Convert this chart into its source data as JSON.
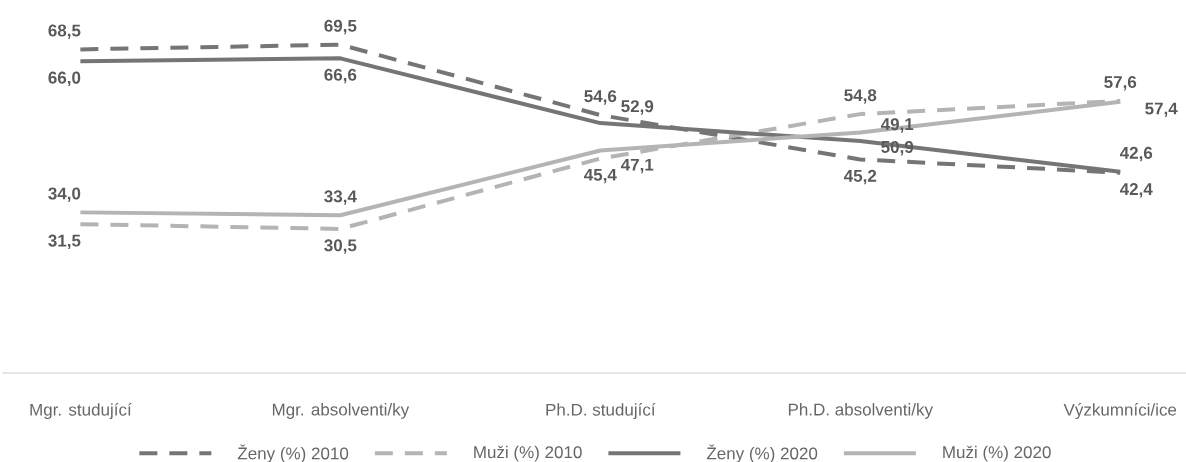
{
  "chart_data": {
    "type": "line",
    "categories": [
      "Mgr. studující",
      "Mgr. absolventi/ky",
      "Ph.D. studující",
      "Ph.D. absolventi/ky",
      "Výzkumníci/ice"
    ],
    "series": [
      {
        "name": "Ženy (%) 2010",
        "color": "#757575",
        "line_style": "dashed",
        "values": [
          68.5,
          69.5,
          54.6,
          45.2,
          42.4
        ],
        "value_labels": [
          "68,5",
          "69,5",
          "54,6",
          "45,2",
          "42,4"
        ]
      },
      {
        "name": "Muži (%) 2010",
        "color": "#b4b4b4",
        "line_style": "dashed",
        "values": [
          31.5,
          30.5,
          45.4,
          54.8,
          57.6
        ],
        "value_labels": [
          "31,5",
          "30,5",
          "45,4",
          "54,8",
          "57,6"
        ]
      },
      {
        "name": "Ženy (%) 2020",
        "color": "#757575",
        "line_style": "solid",
        "values": [
          66.0,
          66.6,
          52.9,
          49.1,
          42.6
        ],
        "value_labels": [
          "66,0",
          "66,6",
          "52,9",
          "49,1",
          "42,6"
        ]
      },
      {
        "name": "Muži (%) 2020",
        "color": "#b4b4b4",
        "line_style": "solid",
        "values": [
          34.0,
          33.4,
          47.1,
          50.9,
          57.4
        ],
        "value_labels": [
          "34,0",
          "33,4",
          "47,1",
          "50,9",
          "57,4"
        ]
      }
    ],
    "tick_labels": "x",
    "legend": "bottom"
  }
}
